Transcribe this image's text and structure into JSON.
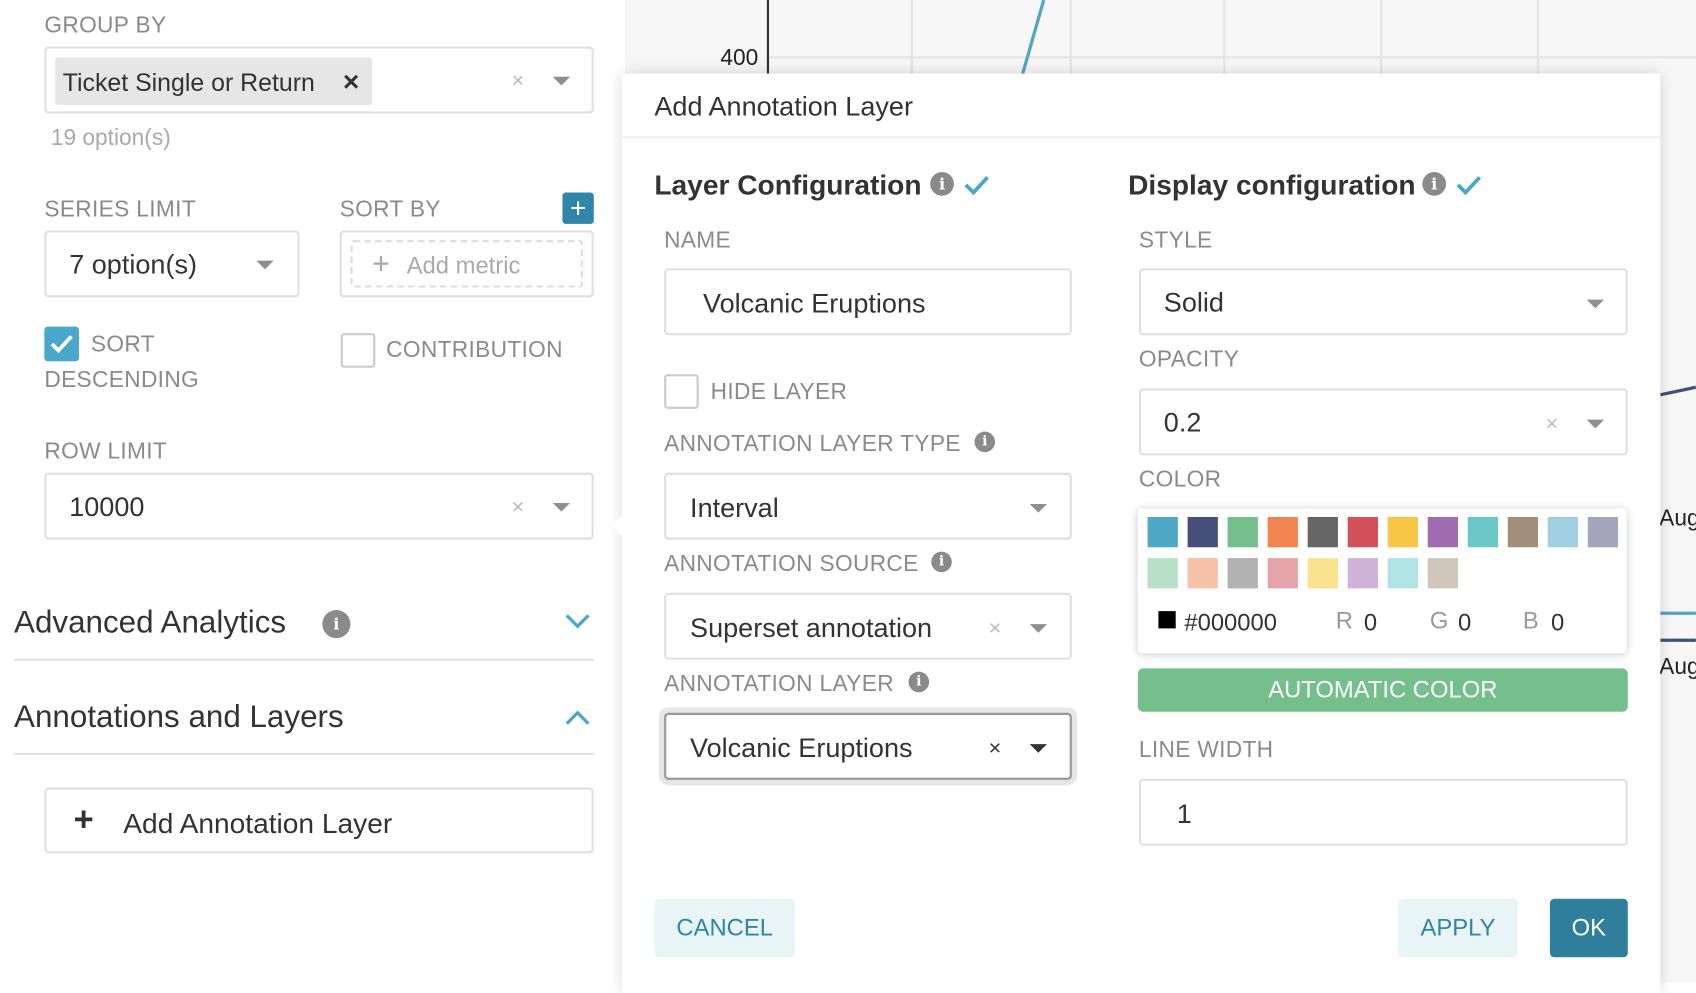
{
  "left_panel": {
    "group_by": {
      "label": "GROUP BY",
      "tag": "Ticket Single or Return",
      "tag_remove": "×",
      "clear": "×",
      "hint": "19 option(s)"
    },
    "series_limit": {
      "label": "SERIES LIMIT",
      "value": "7 option(s)"
    },
    "sort_by": {
      "label": "SORT BY",
      "add_button": "+",
      "placeholder": "Add metric",
      "placeholder_plus": "+"
    },
    "sort_descending": {
      "label_line1": "SORT",
      "label_line2": "DESCENDING",
      "checked": true
    },
    "contribution": {
      "label": "CONTRIBUTION",
      "checked": false
    },
    "row_limit": {
      "label": "ROW LIMIT",
      "value": "10000",
      "clear": "×"
    },
    "sections": [
      {
        "title": "Advanced Analytics",
        "expanded": false
      },
      {
        "title": "Annotations and Layers",
        "expanded": true
      }
    ],
    "add_annotation_layer": {
      "plus": "+",
      "label": "Add Annotation Layer"
    }
  },
  "chart": {
    "y_tick": "400",
    "x_ticks": [
      "Aug",
      "Aug"
    ],
    "line_color": "#4fa7c6"
  },
  "modal": {
    "title": "Add Annotation Layer",
    "layer_config": {
      "heading": "Layer Configuration",
      "name_label": "NAME",
      "name_value": "Volcanic Eruptions",
      "hide_layer_label": "HIDE LAYER",
      "hide_layer_checked": false,
      "type_label": "ANNOTATION LAYER TYPE",
      "type_value": "Interval",
      "source_label": "ANNOTATION SOURCE",
      "source_value": "Superset annotation",
      "layer_label": "ANNOTATION LAYER",
      "layer_value": "Volcanic Eruptions",
      "clear": "×"
    },
    "display_config": {
      "heading": "Display configuration",
      "style_label": "STYLE",
      "style_value": "Solid",
      "opacity_label": "OPACITY",
      "opacity_value": "0.2",
      "color_label": "COLOR",
      "swatches": [
        "#4fa7c6",
        "#464f7a",
        "#75bf8c",
        "#f2854f",
        "#666666",
        "#d3505a",
        "#f6c644",
        "#9f6db0",
        "#6bc7c8",
        "#a28f7b",
        "#9fcfe0",
        "#a1a6bb",
        "#b8e0c6",
        "#f5c2a8",
        "#b2b2b2",
        "#e6a5ab",
        "#f9e38e",
        "#cfb4d8",
        "#afe3e4",
        "#d1c6bb"
      ],
      "hex_value": "#000000",
      "r_label": "R",
      "r_value": "0",
      "g_label": "G",
      "g_value": "0",
      "b_label": "B",
      "b_value": "0",
      "automatic_color": "AUTOMATIC COLOR",
      "line_width_label": "LINE WIDTH",
      "line_width_value": "1"
    },
    "footer": {
      "cancel": "CANCEL",
      "apply": "APPLY",
      "ok": "OK"
    }
  },
  "colors": {
    "accent": "#2f86a8",
    "ok_bg": "#2f7f9c",
    "auto_color_bg": "#74bf8c",
    "check": "#49a8c9"
  }
}
